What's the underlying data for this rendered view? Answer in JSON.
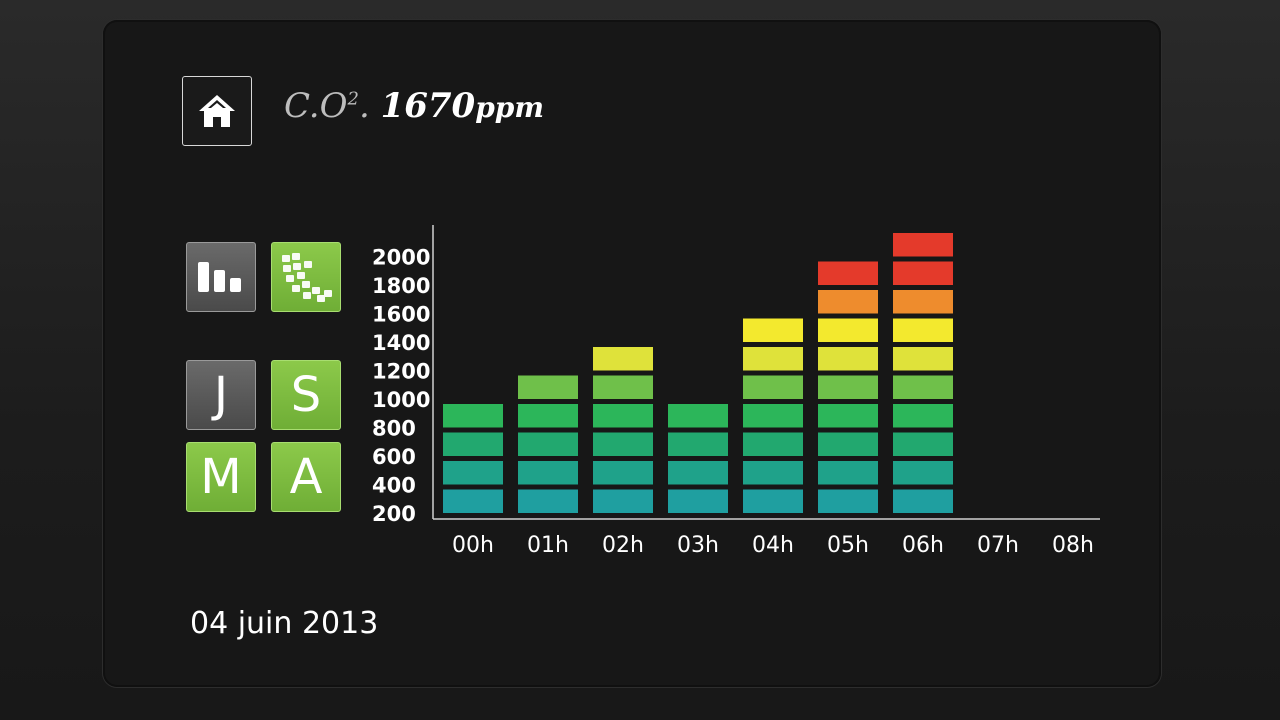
{
  "header": {
    "home_icon": "home-icon",
    "title_label": "C.O",
    "title_sup": "2",
    "title_sep": ". ",
    "value": "1670",
    "unit": "ppm"
  },
  "side_buttons": {
    "bar_chart_icon": "bar-chart-icon",
    "gauge_icon": "gauge-icon",
    "j": "J",
    "s": "S",
    "m": "M",
    "a": "A"
  },
  "footer": {
    "date": "04 juin 2013"
  },
  "colors": {
    "segments": [
      "#1f9fa0",
      "#1fa28a",
      "#22a86f",
      "#2cb65a",
      "#6fc04a",
      "#dfe23a",
      "#f3e92e",
      "#ee8c2d",
      "#e43a2b"
    ],
    "active_button": "#7ab83f",
    "inactive_button": "#585858"
  },
  "chart_data": {
    "type": "bar",
    "y_ticks": [
      "2000",
      "1800",
      "1600",
      "1400",
      "1200",
      "1000",
      "800",
      "600",
      "400",
      "200"
    ],
    "categories": [
      "00h",
      "01h",
      "02h",
      "03h",
      "04h",
      "05h",
      "06h",
      "07h",
      "08h"
    ],
    "values": [
      800,
      1000,
      1200,
      800,
      1400,
      1800,
      2000,
      0,
      0
    ],
    "segment_step": 200,
    "ylim": [
      0,
      2000
    ]
  }
}
